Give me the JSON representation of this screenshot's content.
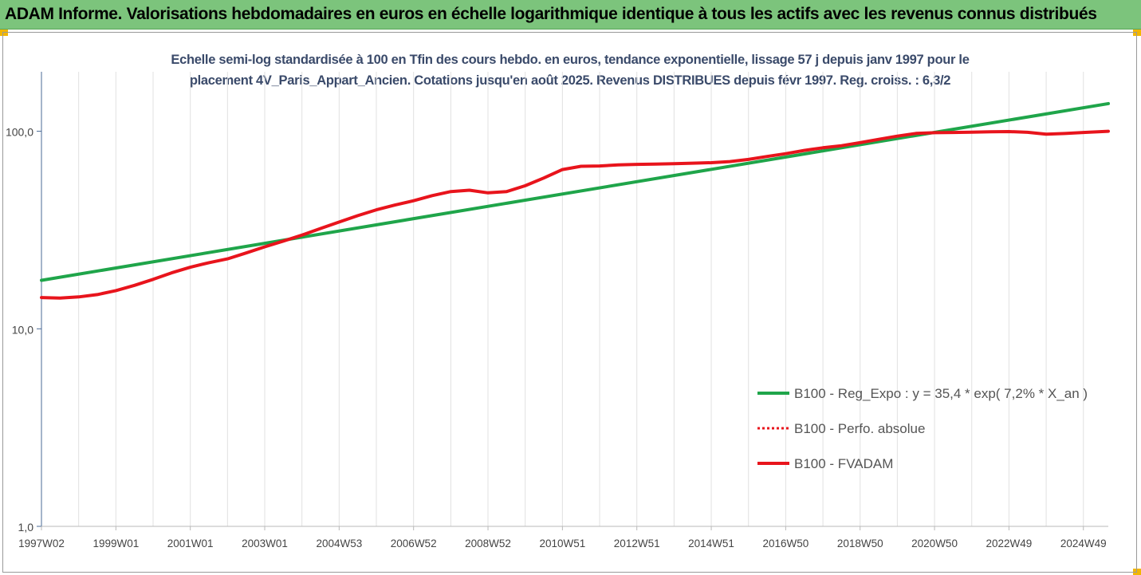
{
  "header": {
    "title": "ADAM Informe. Valorisations hebdomadaires en euros en échelle logarithmique identique à tous les actifs avec les revenus connus distribués"
  },
  "chart_data": {
    "type": "line",
    "title_line1": "Echelle semi-log standardisée à 100 en Tfin des cours hebdo. en euros, tendance exponentielle, lissage 57 j depuis janv 1997 pour le",
    "title_line2": "placement 4V_Paris_Appart_Ancien. Cotations jusqu'en août 2025. Revenus DISTRIBUES depuis févr 1997. Reg. croiss. : 6,3/2",
    "y_scale": "log",
    "ylim": [
      1,
      200
    ],
    "y_ticks": [
      {
        "value": 1,
        "label": "1,0"
      },
      {
        "value": 10,
        "label": "10,0"
      },
      {
        "value": 100,
        "label": "100,0"
      }
    ],
    "xlim": [
      1997.0,
      2025.67
    ],
    "x_ticks": [
      {
        "x": 1997.0,
        "label": "1997W02"
      },
      {
        "x": 1999.0,
        "label": "1999W01"
      },
      {
        "x": 2001.0,
        "label": "2001W01"
      },
      {
        "x": 2003.0,
        "label": "2003W01"
      },
      {
        "x": 2005.0,
        "label": "2004W53"
      },
      {
        "x": 2007.0,
        "label": "2006W52"
      },
      {
        "x": 2009.0,
        "label": "2008W52"
      },
      {
        "x": 2011.0,
        "label": "2010W51"
      },
      {
        "x": 2013.0,
        "label": "2012W51"
      },
      {
        "x": 2015.0,
        "label": "2014W51"
      },
      {
        "x": 2017.0,
        "label": "2016W50"
      },
      {
        "x": 2019.0,
        "label": "2018W50"
      },
      {
        "x": 2021.0,
        "label": "2020W50"
      },
      {
        "x": 2023.0,
        "label": "2022W49"
      },
      {
        "x": 2025.0,
        "label": "2024W49"
      }
    ],
    "grid": "vertical",
    "legend_position": "right",
    "series": [
      {
        "name": "B100 - Reg_Expo : y = 35,4 * exp( 7,2% * X_an )",
        "color": "#1fa54a",
        "style": "solid",
        "points": [
          [
            1997.0,
            17.6
          ],
          [
            2025.67,
            138
          ]
        ]
      },
      {
        "name": "B100 - Perfo. absolue",
        "color": "#e8141c",
        "style": "dotted",
        "points": []
      },
      {
        "name": "B100 - FVADAM",
        "color": "#e8141c",
        "style": "solid",
        "points": [
          [
            1997.0,
            14.4
          ],
          [
            1997.5,
            14.3
          ],
          [
            1998.0,
            14.5
          ],
          [
            1998.5,
            14.9
          ],
          [
            1999.0,
            15.6
          ],
          [
            1999.5,
            16.6
          ],
          [
            2000.0,
            17.8
          ],
          [
            2000.5,
            19.2
          ],
          [
            2001.0,
            20.5
          ],
          [
            2001.5,
            21.6
          ],
          [
            2002.0,
            22.6
          ],
          [
            2002.5,
            24.2
          ],
          [
            2003.0,
            26.0
          ],
          [
            2003.5,
            27.8
          ],
          [
            2004.0,
            29.8
          ],
          [
            2004.5,
            32.2
          ],
          [
            2005.0,
            34.7
          ],
          [
            2005.5,
            37.4
          ],
          [
            2006.0,
            40.0
          ],
          [
            2006.5,
            42.3
          ],
          [
            2007.0,
            44.5
          ],
          [
            2007.5,
            47.2
          ],
          [
            2008.0,
            49.5
          ],
          [
            2008.5,
            50.3
          ],
          [
            2009.0,
            48.8
          ],
          [
            2009.5,
            49.5
          ],
          [
            2010.0,
            53.0
          ],
          [
            2010.5,
            58.0
          ],
          [
            2011.0,
            64.0
          ],
          [
            2011.5,
            66.5
          ],
          [
            2012.0,
            66.7
          ],
          [
            2012.5,
            67.6
          ],
          [
            2013.0,
            68.0
          ],
          [
            2013.5,
            68.2
          ],
          [
            2014.0,
            68.5
          ],
          [
            2014.5,
            68.9
          ],
          [
            2015.0,
            69.3
          ],
          [
            2015.5,
            70.2
          ],
          [
            2016.0,
            72.0
          ],
          [
            2016.5,
            74.5
          ],
          [
            2017.0,
            77.0
          ],
          [
            2017.5,
            80.0
          ],
          [
            2018.0,
            82.5
          ],
          [
            2018.5,
            84.5
          ],
          [
            2019.0,
            87.5
          ],
          [
            2019.5,
            91.0
          ],
          [
            2020.0,
            94.5
          ],
          [
            2020.5,
            97.5
          ],
          [
            2021.0,
            98.3
          ],
          [
            2021.5,
            98.6
          ],
          [
            2022.0,
            98.9
          ],
          [
            2022.5,
            99.3
          ],
          [
            2023.0,
            99.6
          ],
          [
            2023.5,
            98.8
          ],
          [
            2024.0,
            96.7
          ],
          [
            2024.5,
            97.4
          ],
          [
            2025.0,
            98.6
          ],
          [
            2025.67,
            100.0
          ]
        ]
      }
    ]
  }
}
